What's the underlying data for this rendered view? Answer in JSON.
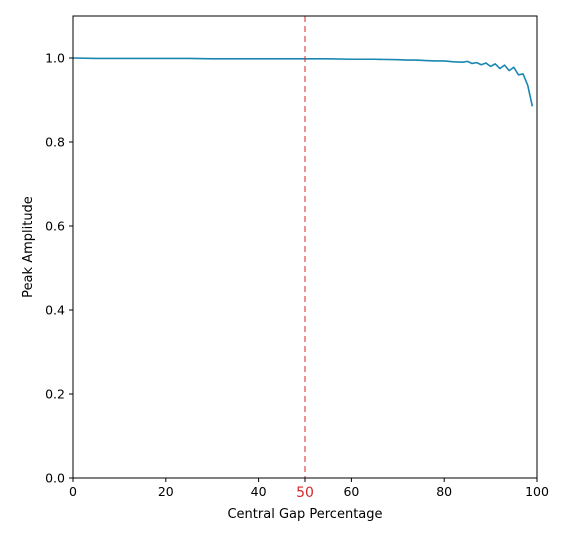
{
  "chart_data": {
    "type": "line",
    "xlabel": "Central Gap Percentage",
    "ylabel": "Peak Amplitude",
    "xlim": [
      0,
      100
    ],
    "ylim": [
      0,
      1.1
    ],
    "grid": false,
    "x_ticks": [
      0,
      20,
      40,
      60,
      80,
      100
    ],
    "y_ticks": [
      0.0,
      0.2,
      0.4,
      0.6,
      0.8,
      1.0
    ],
    "x_tick_labels": [
      "0",
      "20",
      "40",
      "60",
      "80",
      "100"
    ],
    "y_tick_labels": [
      "0.0",
      "0.2",
      "0.4",
      "0.6",
      "0.8",
      "1.0"
    ],
    "series": [
      {
        "color": "#1a87b1",
        "x": [
          0,
          5,
          10,
          15,
          20,
          25,
          30,
          35,
          40,
          45,
          50,
          55,
          60,
          65,
          70,
          72,
          74,
          76,
          78,
          80,
          82,
          84,
          85,
          86,
          87,
          88,
          89,
          90,
          91,
          92,
          93,
          94,
          95,
          96,
          97,
          98,
          99
        ],
        "y": [
          1.0,
          0.999,
          0.999,
          0.999,
          0.999,
          0.999,
          0.998,
          0.998,
          0.998,
          0.998,
          0.998,
          0.998,
          0.997,
          0.997,
          0.996,
          0.995,
          0.995,
          0.994,
          0.993,
          0.993,
          0.991,
          0.99,
          0.992,
          0.987,
          0.989,
          0.984,
          0.988,
          0.98,
          0.986,
          0.975,
          0.983,
          0.97,
          0.978,
          0.96,
          0.962,
          0.935,
          0.885
        ]
      }
    ],
    "annotations": [
      {
        "type": "vline",
        "x": 50,
        "color": "#d62728",
        "label": "50",
        "label_color": "#d62728",
        "style": "dashed"
      }
    ]
  }
}
